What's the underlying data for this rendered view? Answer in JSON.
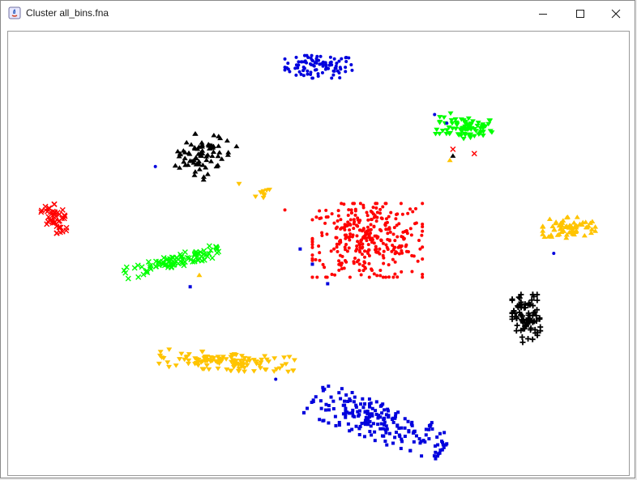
{
  "window": {
    "title": "Cluster all_bins.fna",
    "icons": {
      "app": "java-app-icon",
      "minimize": "minimize-icon",
      "maximize": "maximize-icon",
      "close": "close-icon"
    }
  },
  "colors": {
    "red": "#ff0000",
    "green": "#00ff00",
    "blue": "#0000dd",
    "black": "#000000",
    "yellow": "#ffc400"
  },
  "chart_data": {
    "type": "scatter",
    "title": "",
    "xlabel": "",
    "ylabel": "",
    "xlim": [
      0,
      100
    ],
    "ylim": [
      0,
      100
    ],
    "grid": false,
    "axes_visible": false,
    "legend": "none",
    "series": [
      {
        "color": "blue",
        "marker": "dot",
        "center": [
          50,
          93
        ],
        "spread": [
          5.5,
          2.6
        ],
        "count": 95,
        "angle": 0
      },
      {
        "color": "green",
        "marker": "triangle-down",
        "center": [
          74,
          79
        ],
        "spread": [
          4.5,
          2.8
        ],
        "count": 80,
        "angle": -10
      },
      {
        "color": "black",
        "marker": "triangle-up",
        "center": [
          31,
          73
        ],
        "spread": [
          3.6,
          4.8
        ],
        "count": 80,
        "angle": -35
      },
      {
        "color": "red",
        "marker": "x",
        "center": [
          7,
          58
        ],
        "spread": [
          1.8,
          3.2
        ],
        "count": 45,
        "angle": 20
      },
      {
        "color": "red",
        "marker": "dot",
        "center": [
          58,
          53
        ],
        "spread": [
          9.0,
          8.5
        ],
        "count": 340,
        "angle": 0
      },
      {
        "color": "yellow",
        "marker": "triangle-up",
        "center": [
          91,
          56
        ],
        "spread": [
          4.3,
          2.4
        ],
        "count": 70,
        "angle": 0
      },
      {
        "color": "green",
        "marker": "x",
        "center": [
          26,
          48
        ],
        "spread": [
          8.0,
          1.4
        ],
        "count": 95,
        "angle": 20
      },
      {
        "color": "black",
        "marker": "plus",
        "center": [
          84,
          35
        ],
        "spread": [
          2.3,
          5.5
        ],
        "count": 90,
        "angle": 0
      },
      {
        "color": "yellow",
        "marker": "triangle-down",
        "center": [
          35,
          25
        ],
        "spread": [
          11.0,
          2.0
        ],
        "count": 120,
        "angle": -5
      },
      {
        "color": "blue",
        "marker": "square",
        "center": [
          60,
          11
        ],
        "spread": [
          12.0,
          4.0
        ],
        "count": 210,
        "angle": -28
      },
      {
        "color": "yellow",
        "marker": "triangle-down",
        "center": [
          41,
          64
        ],
        "spread": [
          2.0,
          1.2
        ],
        "count": 8,
        "angle": 0
      }
    ],
    "outliers": [
      {
        "color": "blue",
        "marker": "dot",
        "x": 23.3,
        "y": 70.0
      },
      {
        "color": "blue",
        "marker": "dot",
        "x": 69.0,
        "y": 82.0
      },
      {
        "color": "blue",
        "marker": "dot",
        "x": 71.0,
        "y": 80.0
      },
      {
        "color": "red",
        "marker": "x",
        "x": 72.0,
        "y": 74.0
      },
      {
        "color": "red",
        "marker": "x",
        "x": 75.5,
        "y": 73.0
      },
      {
        "color": "black",
        "marker": "triangle-up",
        "x": 72.0,
        "y": 72.5
      },
      {
        "color": "yellow",
        "marker": "triangle-up",
        "x": 71.5,
        "y": 71.5
      },
      {
        "color": "blue",
        "marker": "square",
        "x": 29.0,
        "y": 42.3
      },
      {
        "color": "yellow",
        "marker": "triangle-up",
        "x": 30.5,
        "y": 45.0
      },
      {
        "color": "blue",
        "marker": "dot",
        "x": 88.5,
        "y": 50.0
      },
      {
        "color": "blue",
        "marker": "square",
        "x": 47.0,
        "y": 51.0
      },
      {
        "color": "blue",
        "marker": "square",
        "x": 49.0,
        "y": 47.5
      },
      {
        "color": "blue",
        "marker": "square",
        "x": 51.5,
        "y": 43.0
      },
      {
        "color": "blue",
        "marker": "dot",
        "x": 43.0,
        "y": 21.0
      },
      {
        "color": "red",
        "marker": "dot",
        "x": 44.5,
        "y": 60.0
      },
      {
        "color": "yellow",
        "marker": "triangle-down",
        "x": 37.0,
        "y": 66.0
      }
    ]
  }
}
